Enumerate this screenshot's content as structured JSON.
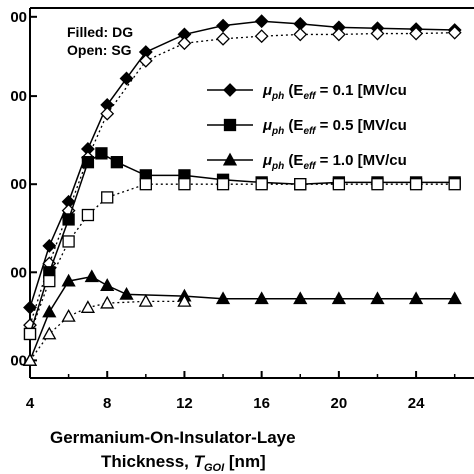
{
  "chart_data": {
    "type": "line",
    "title": "",
    "xlabel_line1": "Germanium-On-Insulator-Laye",
    "xlabel_line2_prefix": "Thickness, ",
    "xlabel_var": "T",
    "xlabel_sub": "GOI",
    "xlabel_unit": " [nm]",
    "xlim": [
      4,
      27
    ],
    "x_ticks": [
      4,
      8,
      12,
      16,
      20,
      24
    ],
    "y_tick_labels": [
      "00",
      "00",
      "00",
      "00",
      "00"
    ],
    "ylim": [
      0,
      4.2
    ],
    "y_tick_values": [
      0.2,
      1.2,
      2.2,
      3.2,
      4.1
    ],
    "grid": false,
    "annotations": [
      "Filled: DG",
      "Open: SG"
    ],
    "legend_position": "right, upper half",
    "legend": [
      {
        "marker": "diamond",
        "mu": "μ",
        "mu_sub": "ph",
        "open": " (E",
        "e_sub": "eff",
        "rest": " = 0.1 [MV/cu"
      },
      {
        "marker": "square",
        "mu": "μ",
        "mu_sub": "ph",
        "open": " (E",
        "e_sub": "eff",
        "rest": " = 0.5 [MV/cu"
      },
      {
        "marker": "triangle",
        "mu": "μ",
        "mu_sub": "ph",
        "open": " (E",
        "e_sub": "eff",
        "rest": " = 1.0 [MV/cu"
      }
    ],
    "series": [
      {
        "marker": "diamond",
        "fill": "filled",
        "style": "solid",
        "x": [
          4,
          5,
          6,
          7,
          8,
          9,
          10,
          12,
          14,
          16,
          18,
          20,
          22,
          24,
          26
        ],
        "y": [
          0.8,
          1.5,
          2.0,
          2.6,
          3.1,
          3.4,
          3.7,
          3.9,
          4.0,
          4.05,
          4.02,
          3.98,
          3.97,
          3.96,
          3.95
        ]
      },
      {
        "marker": "diamond",
        "fill": "open",
        "style": "dotted",
        "x": [
          4,
          5,
          6,
          7,
          8,
          10,
          12,
          14,
          16,
          18,
          20,
          22,
          24,
          26
        ],
        "y": [
          0.6,
          1.3,
          1.9,
          2.5,
          3.0,
          3.6,
          3.8,
          3.85,
          3.88,
          3.9,
          3.9,
          3.91,
          3.91,
          3.92
        ]
      },
      {
        "marker": "square",
        "fill": "filled",
        "style": "solid",
        "x": [
          4,
          5,
          6,
          7,
          7.7,
          8.5,
          10,
          12,
          14,
          16,
          18,
          20,
          22,
          24,
          26
        ],
        "y": [
          0.5,
          1.2,
          1.8,
          2.45,
          2.55,
          2.45,
          2.3,
          2.3,
          2.25,
          2.22,
          2.2,
          2.22,
          2.22,
          2.22,
          2.22
        ]
      },
      {
        "marker": "square",
        "fill": "open",
        "style": "dotted",
        "x": [
          4,
          5,
          6,
          7,
          8,
          10,
          12,
          14,
          16,
          18,
          20,
          22,
          24,
          26
        ],
        "y": [
          0.5,
          1.1,
          1.55,
          1.85,
          2.05,
          2.2,
          2.2,
          2.2,
          2.2,
          2.2,
          2.2,
          2.2,
          2.2,
          2.2
        ]
      },
      {
        "marker": "triangle",
        "fill": "filled",
        "style": "solid",
        "x": [
          4,
          5,
          6,
          7.2,
          8,
          9,
          12,
          14,
          16,
          18,
          20,
          22,
          24,
          26
        ],
        "y": [
          0.2,
          0.75,
          1.1,
          1.15,
          1.05,
          0.95,
          0.93,
          0.9,
          0.9,
          0.9,
          0.9,
          0.9,
          0.9,
          0.9
        ]
      },
      {
        "marker": "triangle",
        "fill": "open",
        "style": "dotted",
        "x": [
          4,
          5,
          6,
          7,
          8,
          10,
          12
        ],
        "y": [
          0.2,
          0.5,
          0.7,
          0.8,
          0.85,
          0.87,
          0.87
        ]
      }
    ]
  }
}
